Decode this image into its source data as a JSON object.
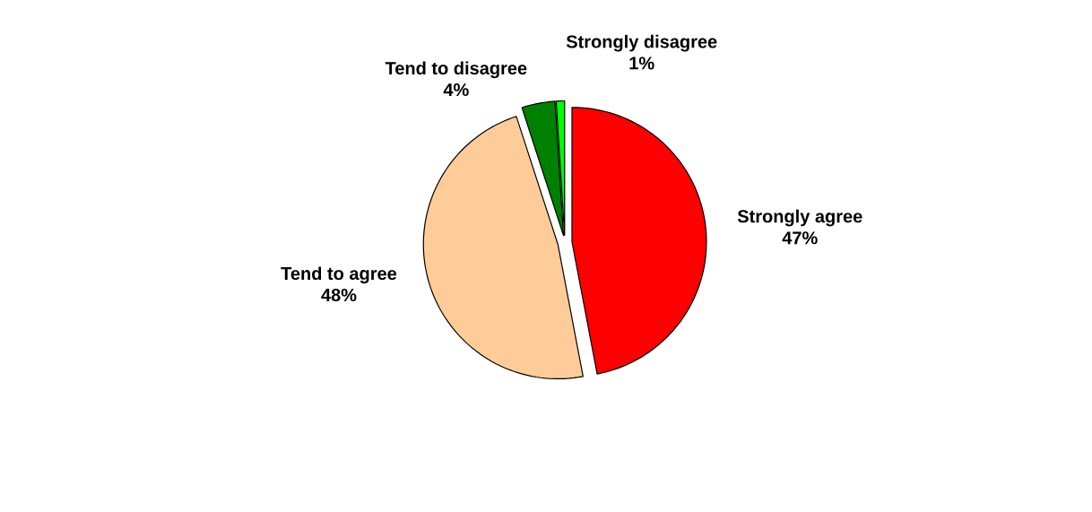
{
  "chart_data": {
    "type": "pie",
    "categories": [
      "Strongly agree",
      "Tend to agree",
      "Tend to disagree",
      "Strongly disagree"
    ],
    "values": [
      47,
      48,
      4,
      1
    ],
    "colors": [
      "#ff0000",
      "#ffcc99",
      "#008000",
      "#00ff00"
    ],
    "value_labels": [
      "47%",
      "48%",
      "4%",
      "1%"
    ]
  }
}
